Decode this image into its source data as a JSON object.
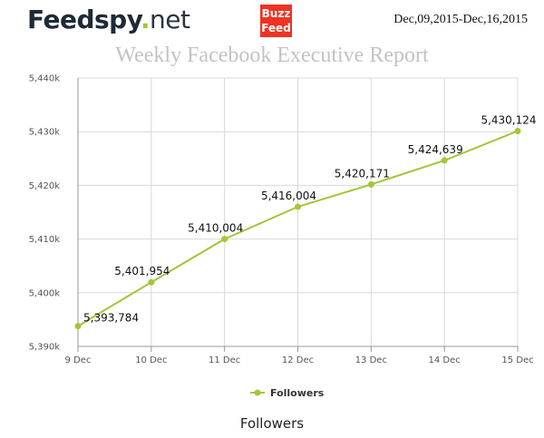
{
  "header": {
    "logo_brand": "Feedspy",
    "logo_dot": ".",
    "logo_tld": "net",
    "partner_logo_line1": "Buzz",
    "partner_logo_line2": "Feed",
    "date_range": "Dec,09,2015-Dec,16,2015"
  },
  "report_title": "Weekly Facebook Executive Report",
  "caption": "Followers",
  "colors": {
    "series": "#a4c639",
    "grid": "#d9d9d9",
    "partner_logo_bg": "#ee3322"
  },
  "chart_data": {
    "type": "line",
    "title": "Weekly Facebook Executive Report",
    "xlabel": "",
    "ylabel": "",
    "categories": [
      "9 Dec",
      "10 Dec",
      "11 Dec",
      "12 Dec",
      "13 Dec",
      "14 Dec",
      "15 Dec"
    ],
    "series": [
      {
        "name": "Followers",
        "values": [
          5393784,
          5401954,
          5410004,
          5416004,
          5420171,
          5424639,
          5430124
        ],
        "labels": [
          "5,393,784",
          "5,401,954",
          "5,410,004",
          "5,416,004",
          "5,420,171",
          "5,424,639",
          "5,430,124"
        ]
      }
    ],
    "ylim": [
      5390000,
      5440000
    ],
    "yticks": [
      5390000,
      5400000,
      5410000,
      5420000,
      5430000,
      5440000
    ],
    "ytick_labels": [
      "5,390k",
      "5,400k",
      "5,410k",
      "5,420k",
      "5,430k",
      "5,440k"
    ],
    "grid": true,
    "legend": "bottom-center"
  }
}
